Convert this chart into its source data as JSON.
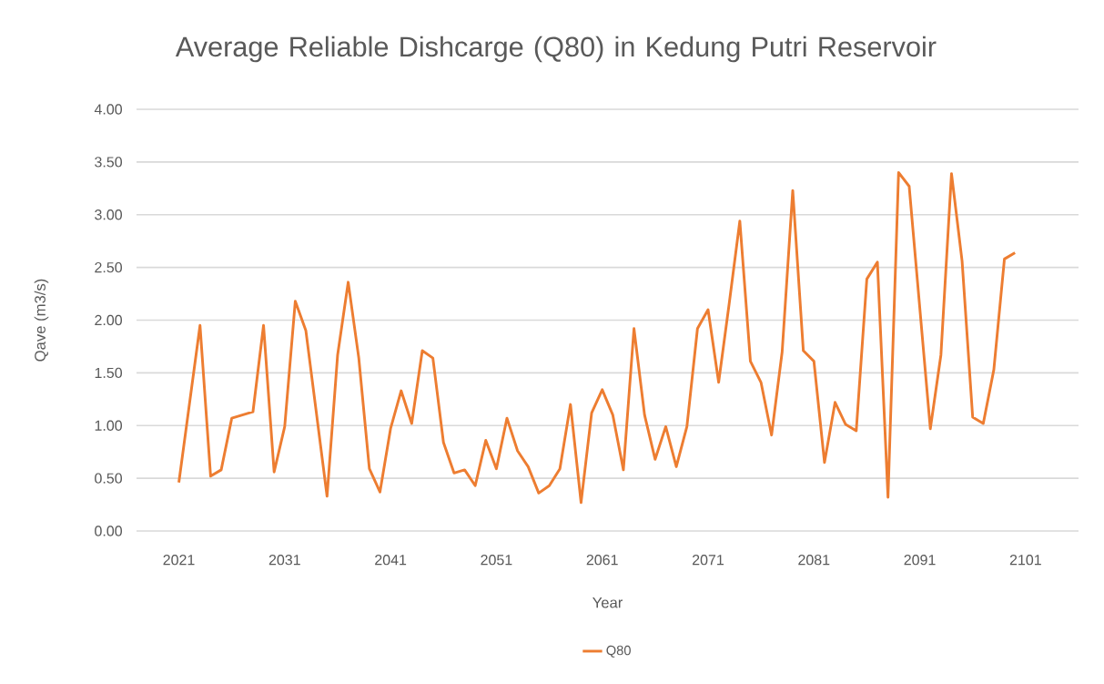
{
  "chart_data": {
    "type": "line",
    "title": "Average Reliable Dishcarge (Q80) in Kedung Putri Reservoir",
    "xlabel": "Year",
    "ylabel": "Qave (m3/s)",
    "series": [
      {
        "name": "Q80",
        "color": "#ed7d31",
        "x": [
          2021,
          2023,
          2024,
          2025,
          2026,
          2027,
          2028,
          2029,
          2030,
          2031,
          2032,
          2033,
          2035,
          2036,
          2037,
          2038,
          2039,
          2040,
          2041,
          2042,
          2043,
          2044,
          2045,
          2046,
          2047,
          2048,
          2049,
          2050,
          2051,
          2052,
          2053,
          2054,
          2055,
          2056,
          2057,
          2058,
          2059,
          2060,
          2061,
          2062,
          2063,
          2064,
          2065,
          2066,
          2067,
          2068,
          2069,
          2070,
          2071,
          2072,
          2073,
          2074,
          2075,
          2076,
          2077,
          2078,
          2079,
          2080,
          2081,
          2082,
          2083,
          2084,
          2085,
          2086,
          2087,
          2088,
          2089,
          2090,
          2092,
          2093,
          2094,
          2095,
          2096,
          2097,
          2098,
          2099,
          2100
        ],
        "values": [
          0.46,
          1.95,
          0.52,
          0.58,
          1.07,
          1.1,
          1.13,
          1.95,
          0.56,
          0.99,
          2.18,
          1.9,
          0.33,
          1.67,
          2.36,
          1.64,
          0.59,
          0.37,
          0.97,
          1.33,
          1.02,
          1.71,
          1.64,
          0.84,
          0.55,
          0.58,
          0.43,
          0.86,
          0.59,
          1.07,
          0.76,
          0.61,
          0.36,
          0.43,
          0.59,
          1.2,
          0.27,
          1.12,
          1.34,
          1.1,
          0.58,
          1.92,
          1.1,
          0.68,
          0.99,
          0.61,
          0.99,
          1.92,
          2.1,
          1.41,
          2.16,
          2.94,
          1.61,
          1.41,
          0.91,
          1.7,
          3.23,
          1.71,
          1.61,
          0.65,
          1.22,
          1.01,
          0.95,
          2.39,
          2.55,
          0.32,
          3.4,
          3.27,
          0.97,
          1.67,
          3.39,
          2.56,
          1.08,
          1.02,
          1.53,
          2.58,
          2.64
        ]
      }
    ],
    "xlim": [
      2017,
      2106
    ],
    "xticks": [
      2021,
      2031,
      2041,
      2051,
      2061,
      2071,
      2081,
      2091,
      2101
    ],
    "ylim": [
      0,
      4
    ],
    "yticks": [
      {
        "value": 0,
        "label": "0.00"
      },
      {
        "value": 0.5,
        "label": "0.50"
      },
      {
        "value": 1,
        "label": "1.00"
      },
      {
        "value": 1.5,
        "label": "1.50"
      },
      {
        "value": 2,
        "label": "2.00"
      },
      {
        "value": 2.5,
        "label": "2.50"
      },
      {
        "value": 3,
        "label": "3.00"
      },
      {
        "value": 3.5,
        "label": "3.50"
      },
      {
        "value": 4,
        "label": "4.00"
      }
    ],
    "grid": "y",
    "legend": "bottom",
    "marker": "none",
    "line_style": "solid"
  }
}
